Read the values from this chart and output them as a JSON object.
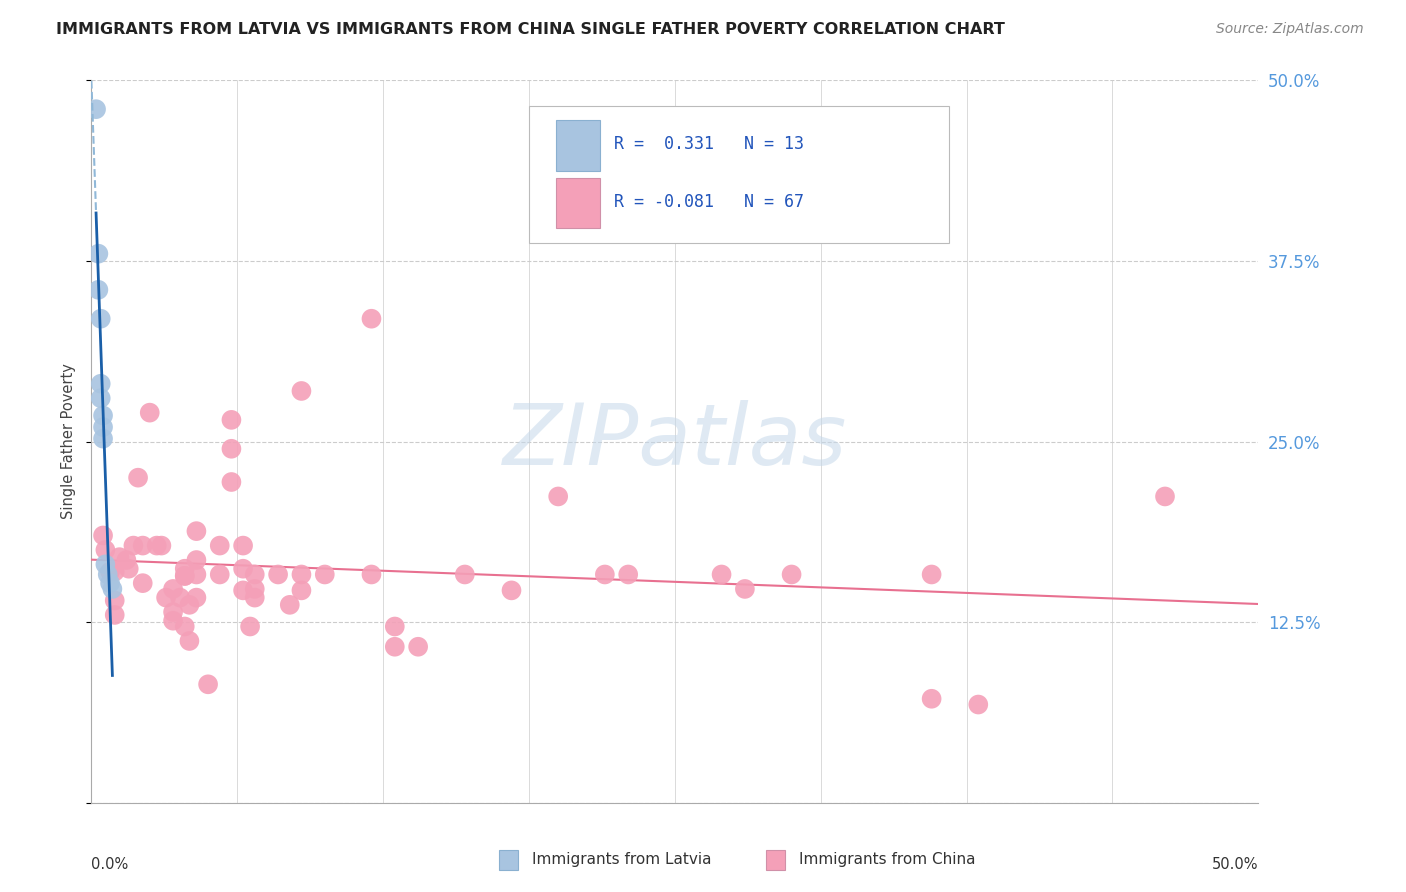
{
  "title": "IMMIGRANTS FROM LATVIA VS IMMIGRANTS FROM CHINA SINGLE FATHER POVERTY CORRELATION CHART",
  "source": "Source: ZipAtlas.com",
  "ylabel": "Single Father Poverty",
  "latvian_color": "#a8c4e0",
  "china_color": "#f4a0b8",
  "latvian_line_color": "#1a5fa8",
  "china_line_color": "#e87090",
  "latvian_dashed_color": "#90b8d8",
  "background_color": "#ffffff",
  "grid_color": "#cccccc",
  "xlim": [
    0.0,
    0.5
  ],
  "ylim": [
    0.0,
    0.5
  ],
  "latvian_points": [
    [
      0.002,
      0.48
    ],
    [
      0.003,
      0.38
    ],
    [
      0.003,
      0.355
    ],
    [
      0.004,
      0.335
    ],
    [
      0.004,
      0.29
    ],
    [
      0.004,
      0.28
    ],
    [
      0.005,
      0.268
    ],
    [
      0.005,
      0.26
    ],
    [
      0.005,
      0.252
    ],
    [
      0.006,
      0.165
    ],
    [
      0.007,
      0.158
    ],
    [
      0.008,
      0.152
    ],
    [
      0.009,
      0.148
    ]
  ],
  "china_points": [
    [
      0.005,
      0.185
    ],
    [
      0.006,
      0.175
    ],
    [
      0.008,
      0.16
    ],
    [
      0.01,
      0.16
    ],
    [
      0.01,
      0.14
    ],
    [
      0.01,
      0.13
    ],
    [
      0.012,
      0.17
    ],
    [
      0.015,
      0.168
    ],
    [
      0.016,
      0.162
    ],
    [
      0.018,
      0.178
    ],
    [
      0.02,
      0.225
    ],
    [
      0.022,
      0.178
    ],
    [
      0.022,
      0.152
    ],
    [
      0.025,
      0.27
    ],
    [
      0.028,
      0.178
    ],
    [
      0.03,
      0.178
    ],
    [
      0.032,
      0.142
    ],
    [
      0.035,
      0.148
    ],
    [
      0.035,
      0.132
    ],
    [
      0.035,
      0.126
    ],
    [
      0.038,
      0.142
    ],
    [
      0.04,
      0.162
    ],
    [
      0.04,
      0.157
    ],
    [
      0.04,
      0.157
    ],
    [
      0.04,
      0.122
    ],
    [
      0.042,
      0.137
    ],
    [
      0.042,
      0.112
    ],
    [
      0.045,
      0.188
    ],
    [
      0.045,
      0.168
    ],
    [
      0.045,
      0.158
    ],
    [
      0.045,
      0.142
    ],
    [
      0.05,
      0.082
    ],
    [
      0.055,
      0.178
    ],
    [
      0.055,
      0.158
    ],
    [
      0.06,
      0.265
    ],
    [
      0.06,
      0.245
    ],
    [
      0.06,
      0.222
    ],
    [
      0.065,
      0.178
    ],
    [
      0.065,
      0.162
    ],
    [
      0.065,
      0.147
    ],
    [
      0.068,
      0.122
    ],
    [
      0.07,
      0.158
    ],
    [
      0.07,
      0.148
    ],
    [
      0.07,
      0.142
    ],
    [
      0.08,
      0.158
    ],
    [
      0.085,
      0.137
    ],
    [
      0.09,
      0.285
    ],
    [
      0.09,
      0.158
    ],
    [
      0.09,
      0.147
    ],
    [
      0.1,
      0.158
    ],
    [
      0.12,
      0.335
    ],
    [
      0.12,
      0.158
    ],
    [
      0.13,
      0.122
    ],
    [
      0.13,
      0.108
    ],
    [
      0.14,
      0.108
    ],
    [
      0.16,
      0.158
    ],
    [
      0.18,
      0.147
    ],
    [
      0.2,
      0.212
    ],
    [
      0.22,
      0.158
    ],
    [
      0.23,
      0.158
    ],
    [
      0.27,
      0.158
    ],
    [
      0.28,
      0.148
    ],
    [
      0.3,
      0.158
    ],
    [
      0.36,
      0.158
    ],
    [
      0.36,
      0.072
    ],
    [
      0.38,
      0.068
    ],
    [
      0.46,
      0.212
    ]
  ],
  "watermark_text": "ZIPatlas",
  "watermark_color": "#c5d8ea",
  "legend_r1_text": "R =  0.331   N = 13",
  "legend_r2_text": "R = -0.081   N = 67",
  "legend_text_color": "#2255bb",
  "legend_label_color": "#333333"
}
